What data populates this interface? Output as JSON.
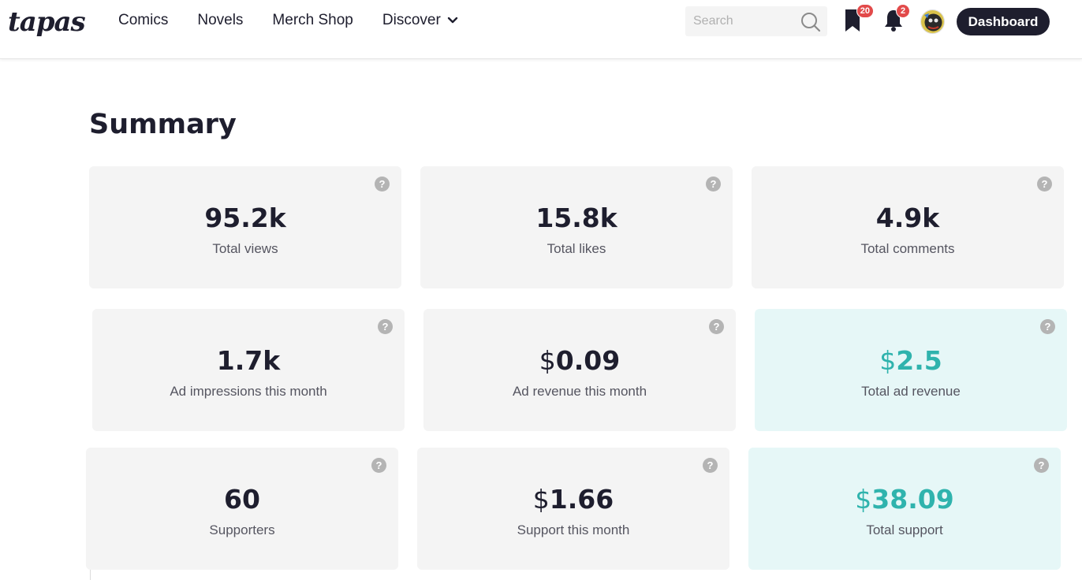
{
  "header": {
    "logo": "tapas",
    "nav": [
      {
        "label": "Comics"
      },
      {
        "label": "Novels"
      },
      {
        "label": "Merch Shop"
      },
      {
        "label": "Discover"
      }
    ],
    "search": {
      "placeholder": "Search",
      "icon": "search-icon"
    },
    "bookmark_badge": "20",
    "notification_badge": "2",
    "dashboard_label": "Dashboard"
  },
  "summary": {
    "title": "Summary",
    "cards": [
      {
        "value": "95.2k",
        "label": "Total views"
      },
      {
        "value": "15.8k",
        "label": "Total likes"
      },
      {
        "value": "4.9k",
        "label": "Total comments"
      },
      {
        "value": "1.7k",
        "label": "Ad impressions this month"
      },
      {
        "currency": "$",
        "value": "0.09",
        "label": "Ad revenue this month"
      },
      {
        "currency": "$",
        "value": "2.5",
        "label": "Total ad revenue",
        "highlight": true
      },
      {
        "value": "60",
        "label": "Supporters"
      },
      {
        "currency": "$",
        "value": "1.66",
        "label": "Support this month"
      },
      {
        "currency": "$",
        "value": "38.09",
        "label": "Total support",
        "highlight": true
      }
    ],
    "help_glyph": "?"
  },
  "colors": {
    "dark": "#1e1e2e",
    "teal": "#2fb3ad",
    "card_bg": "#f4f4f4",
    "teal_bg": "#e6f7f7",
    "badge": "#e24a4a"
  }
}
